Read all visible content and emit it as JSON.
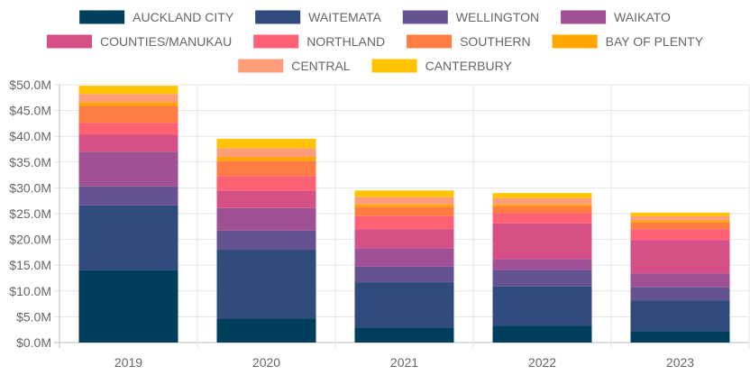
{
  "chart_data": {
    "type": "bar",
    "stacked": true,
    "categories": [
      "2019",
      "2020",
      "2021",
      "2022",
      "2023"
    ],
    "ylim": [
      0,
      50
    ],
    "ytick_step": 5,
    "ytick_labels": [
      "$0.0M",
      "$5.0M",
      "$10.0M",
      "$15.0M",
      "$20.0M",
      "$25.0M",
      "$30.0M",
      "$35.0M",
      "$40.0M",
      "$45.0M",
      "$50.0M"
    ],
    "grid": true,
    "legend_position": "top",
    "series": [
      {
        "name": "AUCKLAND CITY",
        "color": "#003f5c",
        "values": [
          14.0,
          4.7,
          2.8,
          3.3,
          2.2
        ]
      },
      {
        "name": "WAITEMATA",
        "color": "#2f4b7c",
        "values": [
          12.6,
          13.3,
          8.9,
          7.6,
          6.0
        ]
      },
      {
        "name": "WELLINGTON",
        "color": "#665191",
        "values": [
          3.7,
          3.7,
          3.0,
          3.2,
          2.6
        ]
      },
      {
        "name": "WAIKATO",
        "color": "#a05195",
        "values": [
          6.7,
          4.4,
          3.6,
          2.1,
          2.6
        ]
      },
      {
        "name": "COUNTIES/MANUKAU",
        "color": "#d45087",
        "values": [
          3.3,
          3.4,
          3.7,
          6.9,
          6.5
        ]
      },
      {
        "name": "NORTHLAND",
        "color": "#ff6174",
        "values": [
          2.3,
          2.8,
          2.5,
          2.0,
          2.1
        ]
      },
      {
        "name": "SOUTHERN",
        "color": "#ff7c43",
        "values": [
          3.3,
          2.9,
          1.8,
          1.3,
          1.3
        ]
      },
      {
        "name": "BAY OF PLENTY",
        "color": "#ffa600",
        "values": [
          0.7,
          0.8,
          0.5,
          0.4,
          0.4
        ]
      },
      {
        "name": "CENTRAL",
        "color": "#ff9d7a",
        "values": [
          1.6,
          1.7,
          1.4,
          1.2,
          0.8
        ]
      },
      {
        "name": "CANTERBURY",
        "color": "#ffc300",
        "values": [
          1.6,
          1.8,
          1.3,
          1.0,
          0.7
        ]
      }
    ]
  }
}
